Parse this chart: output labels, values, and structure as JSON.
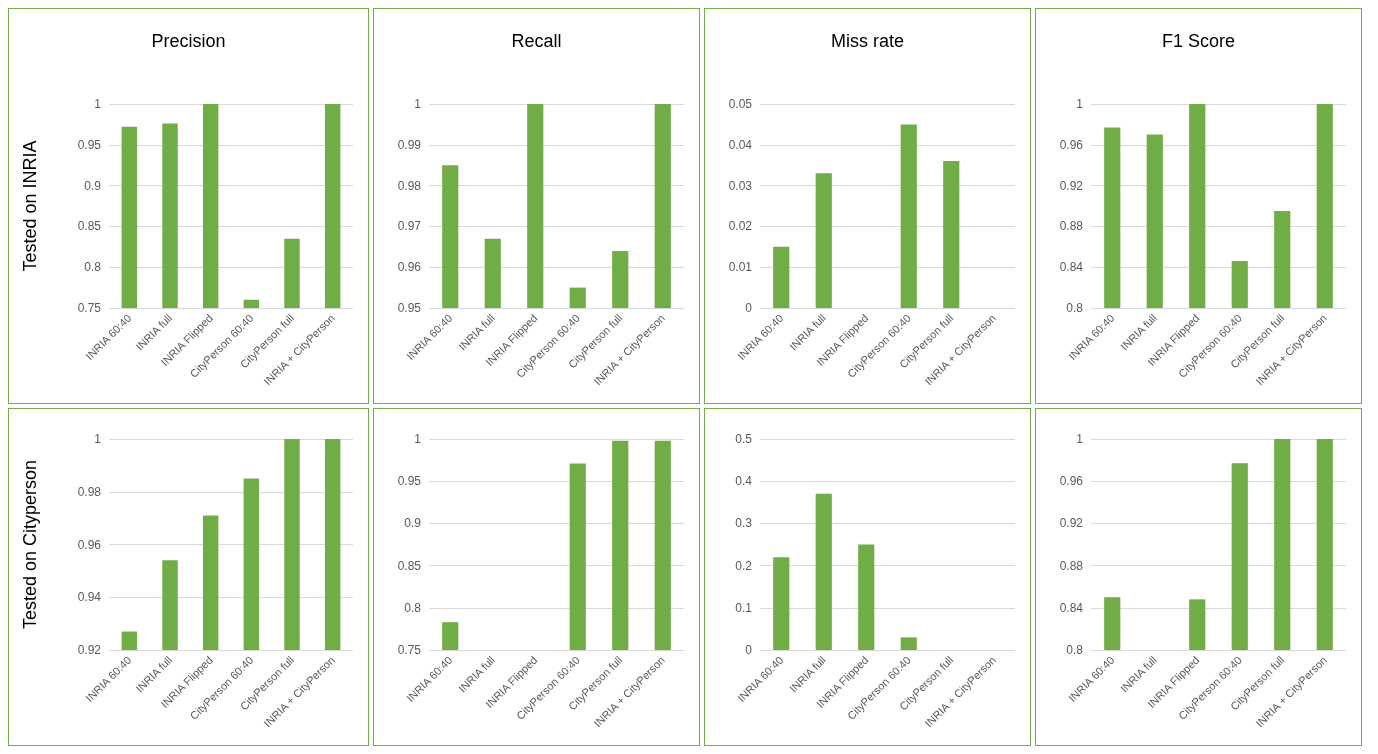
{
  "chart_data": [
    {
      "type": "bar",
      "title": "Precision",
      "ylabel": "Tested on INRIA",
      "categories": [
        "INRIA 60:40",
        "INRIA full",
        "INRIA Flipped",
        "CityPerson 60:40",
        "CityPerson full",
        "INRIA + CityPerson"
      ],
      "values": [
        0.972,
        0.976,
        1,
        0.76,
        0.835,
        1
      ],
      "color": "#70ad47",
      "ylim": [
        0.75,
        1
      ],
      "yticks": [
        0.75,
        0.8,
        0.85,
        0.9,
        0.95,
        1
      ],
      "grid": "y"
    },
    {
      "type": "bar",
      "title": "Recall",
      "categories": [
        "INRIA 60:40",
        "INRIA full",
        "INRIA Flipped",
        "CityPerson 60:40",
        "CityPerson full",
        "INRIA + CityPerson"
      ],
      "values": [
        0.985,
        0.967,
        1,
        0.955,
        0.964,
        1
      ],
      "color": "#70ad47",
      "ylim": [
        0.95,
        1
      ],
      "yticks": [
        0.95,
        0.96,
        0.97,
        0.98,
        0.99,
        1
      ],
      "grid": "y"
    },
    {
      "type": "bar",
      "title": "Miss rate",
      "categories": [
        "INRIA 60:40",
        "INRIA full",
        "INRIA Flipped",
        "CityPerson 60:40",
        "CityPerson full",
        "INRIA + CityPerson"
      ],
      "values": [
        0.015,
        0.033,
        0,
        0.045,
        0.036,
        0
      ],
      "color": "#70ad47",
      "ylim": [
        0,
        0.05
      ],
      "yticks": [
        0,
        0.01,
        0.02,
        0.03,
        0.04,
        0.05
      ],
      "grid": "y"
    },
    {
      "type": "bar",
      "title": "F1 Score",
      "categories": [
        "INRIA 60:40",
        "INRIA full",
        "INRIA Flipped",
        "CityPerson 60:40",
        "CityPerson full",
        "INRIA + CityPerson"
      ],
      "values": [
        0.977,
        0.97,
        1,
        0.846,
        0.895,
        1
      ],
      "color": "#70ad47",
      "ylim": [
        0.8,
        1
      ],
      "yticks": [
        0.8,
        0.84,
        0.88,
        0.92,
        0.96,
        1
      ],
      "grid": "y"
    },
    {
      "type": "bar",
      "ylabel": "Tested on Cityperson",
      "categories": [
        "INRIA 60:40",
        "INRIA full",
        "INRIA Flipped",
        "CityPerson 60:40",
        "CityPerson full",
        "INRIA + CityPerson"
      ],
      "values": [
        0.927,
        0.954,
        0.971,
        0.985,
        1,
        1
      ],
      "color": "#70ad47",
      "ylim": [
        0.92,
        1
      ],
      "yticks": [
        0.92,
        0.94,
        0.96,
        0.98,
        1
      ],
      "grid": "y"
    },
    {
      "type": "bar",
      "categories": [
        "INRIA 60:40",
        "INRIA full",
        "INRIA Flipped",
        "CityPerson 60:40",
        "CityPerson full",
        "INRIA + CityPerson"
      ],
      "values": [
        0.783,
        0.75,
        0.75,
        0.971,
        0.998,
        0.998
      ],
      "color": "#70ad47",
      "ylim": [
        0.75,
        1
      ],
      "yticks": [
        0.75,
        0.8,
        0.85,
        0.9,
        0.95,
        1
      ],
      "grid": "y"
    },
    {
      "type": "bar",
      "categories": [
        "INRIA 60:40",
        "INRIA full",
        "INRIA Flipped",
        "CityPerson 60:40",
        "CityPerson full",
        "INRIA + CityPerson"
      ],
      "values": [
        0.22,
        0.37,
        0.25,
        0.03,
        0,
        0
      ],
      "color": "#70ad47",
      "ylim": [
        0,
        0.5
      ],
      "yticks": [
        0,
        0.1,
        0.2,
        0.3,
        0.4,
        0.5
      ],
      "grid": "y"
    },
    {
      "type": "bar",
      "categories": [
        "INRIA 60:40",
        "INRIA full",
        "INRIA Flipped",
        "CityPerson 60:40",
        "CityPerson full",
        "INRIA + CityPerson"
      ],
      "values": [
        0.85,
        0.8,
        0.848,
        0.977,
        1,
        1
      ],
      "color": "#70ad47",
      "ylim": [
        0.8,
        1
      ],
      "yticks": [
        0.8,
        0.84,
        0.88,
        0.92,
        0.96,
        1
      ],
      "grid": "y"
    }
  ]
}
